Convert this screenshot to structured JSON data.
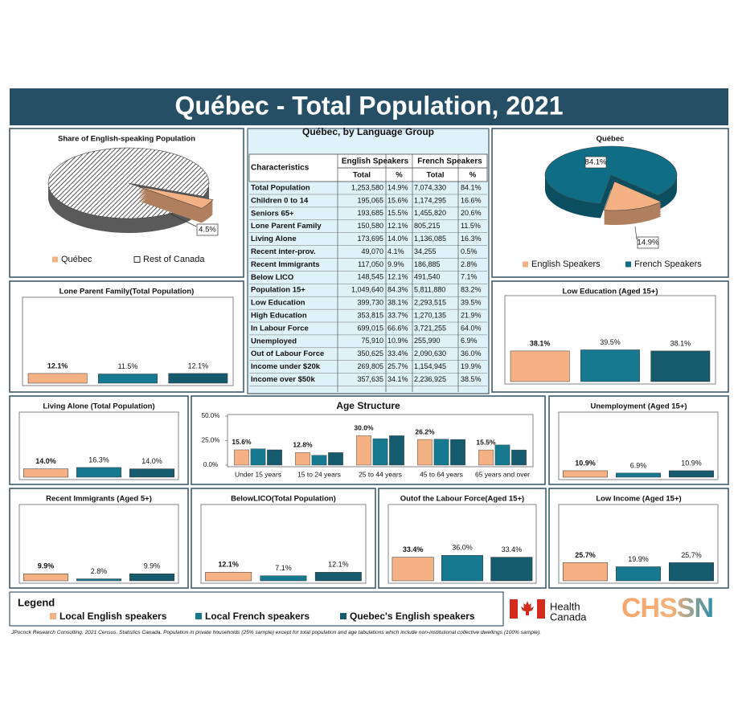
{
  "header": {
    "title": "Québec - Total Population, 2021"
  },
  "legend": {
    "title": "Legend",
    "items": [
      {
        "name": "Local English speakers",
        "color": "#f4b183"
      },
      {
        "name": "Local French speakers",
        "color": "#17798f"
      },
      {
        "name": "Quebec's English speakers",
        "color": "#165a6e"
      }
    ]
  },
  "chart_data": [
    {
      "type": "pie",
      "title": "Share of English-speaking Population",
      "categories": [
        "Québec",
        "Rest of Canada"
      ],
      "values": [
        4.5,
        95.5
      ],
      "value_labels": [
        "4.5%",
        null
      ],
      "colors": [
        "#f4b183",
        "#8c8c8c"
      ],
      "patterns": [
        null,
        "hatch"
      ]
    },
    {
      "type": "pie",
      "title": "Québec",
      "categories": [
        "English Speakers",
        "French Speakers"
      ],
      "values": [
        14.9,
        84.1
      ],
      "value_labels": [
        "14.9%",
        "84.1%"
      ],
      "colors": [
        "#f4b183",
        "#0f6e86"
      ],
      "patterns": [
        null,
        null
      ]
    },
    {
      "type": "bar",
      "title": "Lone Parent Family(Total Population)",
      "values": [
        12.1,
        11.5,
        12.1
      ],
      "value_labels": [
        "12.1%",
        "11.5%",
        "12.1%"
      ],
      "ylim": [
        0,
        100
      ]
    },
    {
      "type": "bar",
      "title": "Low Education (Aged 15+)",
      "values": [
        38.1,
        39.5,
        38.1
      ],
      "value_labels": [
        "38.1%",
        "39.5%",
        "38.1%"
      ],
      "ylim": [
        0,
        100
      ]
    },
    {
      "type": "bar",
      "title": "Living Alone (Total Population)",
      "values": [
        14.0,
        16.3,
        14.0
      ],
      "value_labels": [
        "14.0%",
        "16.3%",
        "14.0%"
      ],
      "ylim": [
        0,
        100
      ]
    },
    {
      "type": "grouped-bar",
      "title": "Age Structure",
      "categories": [
        "Under 15 years",
        "15 to 24 years",
        "25 to 44 years",
        "45 to 64 years",
        "65 years and over"
      ],
      "series": [
        {
          "color": "#f4b183",
          "values": [
            15.6,
            12.8,
            30.0,
            26.2,
            15.5
          ],
          "value_labels": [
            "15.6%",
            "12.8%",
            "30.0%",
            "26.2%",
            "15.5%"
          ]
        },
        {
          "color": "#17798f",
          "values": [
            16.6,
            10.0,
            27.0,
            26.5,
            20.6
          ]
        },
        {
          "color": "#165a6e",
          "values": [
            15.6,
            12.8,
            30.0,
            26.2,
            15.5
          ]
        }
      ],
      "ylim": [
        0,
        50
      ],
      "yticks": [
        {
          "value": 0,
          "label": "0.0%"
        },
        {
          "value": 25,
          "label": "25.0%"
        },
        {
          "value": 50,
          "label": "50.0%"
        }
      ]
    },
    {
      "type": "bar",
      "title": "Unemployment (Aged 15+)",
      "values": [
        10.9,
        6.9,
        10.9
      ],
      "value_labels": [
        "10.9%",
        "6.9%",
        "10.9%"
      ],
      "ylim": [
        0,
        100
      ]
    },
    {
      "type": "bar",
      "title": "Recent Immigrants (Aged 5+)",
      "values": [
        9.9,
        2.8,
        9.9
      ],
      "value_labels": [
        "9.9%",
        "2.8%",
        "9.9%"
      ],
      "ylim": [
        0,
        100
      ]
    },
    {
      "type": "bar",
      "title": "BelowLICO(Total Population)",
      "values": [
        12.1,
        7.1,
        12.1
      ],
      "value_labels": [
        "12.1%",
        "7.1%",
        "12.1%"
      ],
      "ylim": [
        0,
        100
      ]
    },
    {
      "type": "bar",
      "title": "Outof the Labour Force(Aged 15+)",
      "values": [
        33.4,
        36.0,
        33.4
      ],
      "value_labels": [
        "33.4%",
        "36.0%",
        "33.4%"
      ],
      "ylim": [
        0,
        100
      ]
    },
    {
      "type": "bar",
      "title": "Low Income (Aged 15+)",
      "values": [
        25.7,
        19.9,
        25.7
      ],
      "value_labels": [
        "25.7%",
        "19.9%",
        "25.7%"
      ],
      "ylim": [
        0,
        100
      ]
    }
  ],
  "table": {
    "title": "Québec, by Language Group",
    "header": [
      "Characteristics",
      "English Speakers",
      "French Speakers"
    ],
    "subheader": [
      "Total",
      "%",
      "Total",
      "%"
    ],
    "rows": [
      [
        "Total Population",
        "1,253,580",
        "14.9%",
        "7,074,330",
        "84.1%"
      ],
      [
        "Children 0 to 14",
        "195,065",
        "15.6%",
        "1,174,295",
        "16.6%"
      ],
      [
        "Seniors 65+",
        "193,685",
        "15.5%",
        "1,455,820",
        "20.6%"
      ],
      [
        "Lone Parent Family",
        "150,580",
        "12.1%",
        "805,215",
        "11.5%"
      ],
      [
        "Living Alone",
        "173,695",
        "14.0%",
        "1,136,085",
        "16.3%"
      ],
      [
        "Recent inter-prov.",
        "49,070",
        "4.1%",
        "34,255",
        "0.5%"
      ],
      [
        "Recent Immigrants",
        "117,050",
        "9.9%",
        "186,885",
        "2.8%"
      ],
      [
        "Below LICO",
        "148,545",
        "12.1%",
        "491,540",
        "7.1%"
      ],
      [
        "Population 15+",
        "1,049,640",
        "84.3%",
        "5,811,880",
        "83.2%"
      ],
      [
        "Low Education",
        "399,730",
        "38.1%",
        "2,293,515",
        "39.5%"
      ],
      [
        "High Education",
        "353,815",
        "33.7%",
        "1,270,135",
        "21.9%"
      ],
      [
        "In Labour Force",
        "699,015",
        "66.6%",
        "3,721,255",
        "64.0%"
      ],
      [
        "Unemployed",
        "75,910",
        "10.9%",
        "255,990",
        "6.9%"
      ],
      [
        "Out of Labour Force",
        "350,625",
        "33.4%",
        "2,090,630",
        "36.0%"
      ],
      [
        "Income under $20k",
        "269,805",
        "25.7%",
        "1,154,945",
        "19.9%"
      ],
      [
        "Income over $50k",
        "357,635",
        "34.1%",
        "2,236,925",
        "38.5%"
      ]
    ]
  },
  "logos": {
    "health": [
      "Health",
      "Canada"
    ],
    "chssn": "CHSSN"
  },
  "footer": "JPocock Research Consulting. 2021 Census. Statistics Canada. Population in private households (25% sample) except for total population and age tabulations which include non-institutional collective dwellings (100% sample)."
}
